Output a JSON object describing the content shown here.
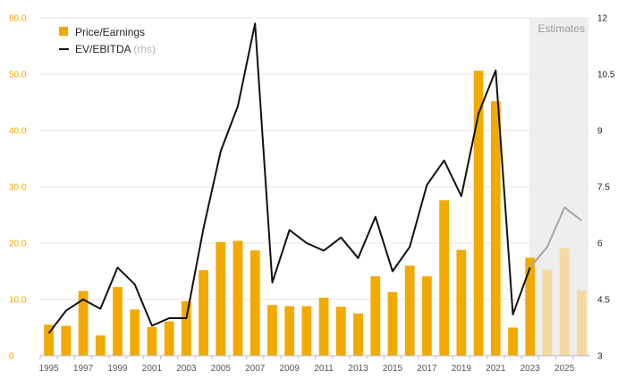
{
  "chart_data": {
    "type": "bar+line",
    "x": [
      1995,
      1996,
      1997,
      1998,
      1999,
      2000,
      2001,
      2002,
      2003,
      2004,
      2005,
      2006,
      2007,
      2008,
      2009,
      2010,
      2011,
      2012,
      2013,
      2014,
      2015,
      2016,
      2017,
      2018,
      2019,
      2020,
      2021,
      2022,
      2023,
      2024,
      2025,
      2026
    ],
    "x_tick_labels": [
      "1995",
      "1997",
      "1999",
      "2001",
      "2003",
      "2005",
      "2007",
      "2009",
      "2011",
      "2013",
      "2015",
      "2017",
      "2019",
      "2021",
      "2023",
      "2025"
    ],
    "series": [
      {
        "name": "Price/Earnings",
        "type": "bar",
        "axis": "left",
        "color": "#f2a900",
        "estimate_color": "#f5d9a0",
        "values": [
          5.5,
          5.3,
          11.5,
          3.6,
          12.2,
          8.2,
          5.1,
          6.1,
          9.7,
          15.2,
          20.2,
          20.4,
          18.7,
          9.0,
          8.8,
          8.8,
          10.3,
          8.7,
          7.5,
          14.1,
          11.3,
          16.0,
          14.1,
          27.6,
          18.8,
          50.6,
          45.2,
          5.0,
          17.4,
          15.3,
          19.1,
          11.6
        ]
      },
      {
        "name": "EV/EBITDA",
        "note": "(rhs)",
        "type": "line",
        "axis": "right",
        "color": "#111111",
        "estimate_color": "#a6a6a6",
        "values": [
          3.6,
          4.2,
          4.5,
          4.25,
          5.35,
          4.9,
          3.8,
          4.0,
          4.0,
          6.4,
          8.45,
          9.65,
          11.85,
          4.95,
          6.35,
          6.0,
          5.8,
          6.15,
          5.6,
          6.7,
          5.25,
          5.9,
          7.55,
          8.2,
          7.25,
          9.45,
          10.6,
          4.1,
          5.35,
          5.9,
          6.95,
          6.6
        ]
      }
    ],
    "y_left": {
      "min": 0,
      "max": 60,
      "tick_labels": [
        "0",
        "10.0",
        "20.0",
        "30.0",
        "40.0",
        "50.0",
        "60.0"
      ]
    },
    "y_right": {
      "min": 3,
      "max": 12,
      "tick_labels": [
        "3",
        "4.5",
        "6",
        "7.5",
        "9",
        "10.5",
        "12"
      ]
    },
    "estimates": {
      "label": "Estimates",
      "from": 2024,
      "to": 2026
    },
    "legend_position": "top-left",
    "grid": true
  }
}
